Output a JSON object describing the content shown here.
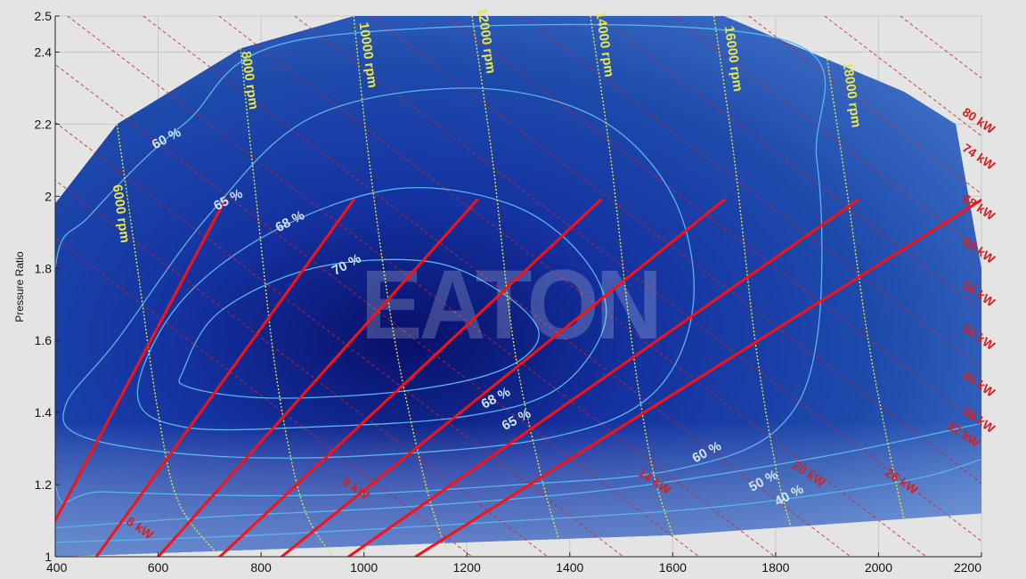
{
  "chart_data": {
    "type": "heatmap",
    "title": "",
    "xlabel": "",
    "ylabel": "Pressure Ratio",
    "xlim": [
      400,
      2200
    ],
    "ylim": [
      1.0,
      2.5
    ],
    "x_ticks": [
      "400",
      "600",
      "800",
      "1000",
      "1200",
      "1400",
      "1600",
      "1800",
      "2000",
      "2200"
    ],
    "y_ticks": [
      "1",
      "1.2",
      "1.4",
      "1.6",
      "1.8",
      "2",
      "2.2",
      "2.4",
      "2.5"
    ],
    "grid": true,
    "watermark": "EATON",
    "colors": {
      "background": "#e4e4e4",
      "map_fill": "#1e4aa8",
      "map_core": "#0a1470",
      "efficiency_contour": "#5ab4ee",
      "speed_line": "#e6e63c",
      "power_line": "#d42020",
      "operating_line": "#ff1010"
    },
    "map_boundary": [
      [
        400,
        1.98
      ],
      [
        520,
        2.2
      ],
      [
        760,
        2.41
      ],
      [
        980,
        2.5
      ],
      [
        1700,
        2.5
      ],
      [
        2050,
        2.29
      ],
      [
        2150,
        2.2
      ],
      [
        2200,
        1.8
      ],
      [
        2200,
        1.12
      ],
      [
        1600,
        1.06
      ],
      [
        1000,
        1.03
      ],
      [
        400,
        1.0
      ]
    ],
    "speed_lines": [
      {
        "label": "6000 rpm",
        "points": [
          [
            520,
            2.2
          ],
          [
            560,
            1.8
          ],
          [
            600,
            1.4
          ],
          [
            640,
            1.15
          ],
          [
            720,
            1.0
          ]
        ],
        "label_at": [
          520,
          1.95
        ]
      },
      {
        "label": "8000 rpm",
        "points": [
          [
            760,
            2.41
          ],
          [
            790,
            2.0
          ],
          [
            830,
            1.5
          ],
          [
            880,
            1.15
          ],
          [
            940,
            1.0
          ]
        ],
        "label_at": [
          770,
          2.32
        ]
      },
      {
        "label": "10000 rpm",
        "points": [
          [
            980,
            2.5
          ],
          [
            1010,
            2.1
          ],
          [
            1060,
            1.6
          ],
          [
            1120,
            1.2
          ],
          [
            1160,
            1.02
          ]
        ],
        "label_at": [
          1000,
          2.39
        ]
      },
      {
        "label": "12000 rpm",
        "points": [
          [
            1210,
            2.5
          ],
          [
            1250,
            2.1
          ],
          [
            1290,
            1.6
          ],
          [
            1340,
            1.25
          ],
          [
            1380,
            1.04
          ]
        ],
        "label_at": [
          1230,
          2.43
        ]
      },
      {
        "label": "14000 rpm",
        "points": [
          [
            1440,
            2.5
          ],
          [
            1480,
            2.1
          ],
          [
            1520,
            1.6
          ],
          [
            1560,
            1.25
          ],
          [
            1600,
            1.06
          ]
        ],
        "label_at": [
          1460,
          2.42
        ]
      },
      {
        "label": "16000 rpm",
        "points": [
          [
            1680,
            2.5
          ],
          [
            1720,
            2.1
          ],
          [
            1760,
            1.6
          ],
          [
            1800,
            1.25
          ],
          [
            1830,
            1.08
          ]
        ],
        "label_at": [
          1710,
          2.38
        ]
      },
      {
        "label": "18000 rpm",
        "points": [
          [
            1900,
            2.38
          ],
          [
            1940,
            2.0
          ],
          [
            1980,
            1.6
          ],
          [
            2020,
            1.3
          ],
          [
            2050,
            1.1
          ]
        ],
        "label_at": [
          1940,
          2.28
        ]
      }
    ],
    "efficiency_contours": [
      {
        "label": "70 %",
        "label_at": [
          970,
          1.8
        ],
        "points": [
          [
            650,
            1.52
          ],
          [
            720,
            1.68
          ],
          [
            900,
            1.8
          ],
          [
            1120,
            1.82
          ],
          [
            1260,
            1.74
          ],
          [
            1340,
            1.62
          ],
          [
            1270,
            1.52
          ],
          [
            1080,
            1.46
          ],
          [
            820,
            1.44
          ],
          [
            660,
            1.47
          ]
        ]
      },
      {
        "label": "68 %",
        "label_at": [
          860,
          1.92
        ],
        "label2": "68 %",
        "label2_at": [
          1260,
          1.43
        ],
        "points": [
          [
            560,
            1.45
          ],
          [
            640,
            1.7
          ],
          [
            820,
            1.9
          ],
          [
            1060,
            2.02
          ],
          [
            1280,
            1.98
          ],
          [
            1420,
            1.84
          ],
          [
            1470,
            1.66
          ],
          [
            1380,
            1.47
          ],
          [
            1200,
            1.39
          ],
          [
            900,
            1.36
          ],
          [
            650,
            1.36
          ]
        ]
      },
      {
        "label": "65 %",
        "label_at": [
          740,
          1.98
        ],
        "label2": "65 %",
        "label2_at": [
          1300,
          1.37
        ],
        "points": [
          [
            420,
            1.42
          ],
          [
            520,
            1.6
          ],
          [
            700,
            1.95
          ],
          [
            900,
            2.22
          ],
          [
            1200,
            2.3
          ],
          [
            1450,
            2.22
          ],
          [
            1600,
            2.0
          ],
          [
            1640,
            1.7
          ],
          [
            1560,
            1.45
          ],
          [
            1360,
            1.33
          ],
          [
            1000,
            1.28
          ],
          [
            700,
            1.28
          ],
          [
            460,
            1.33
          ]
        ]
      },
      {
        "label": "60 %",
        "label_at": [
          620,
          2.15
        ],
        "label2": "60 %",
        "label2_at": [
          1670,
          1.28
        ],
        "points": [
          [
            400,
            1.8
          ],
          [
            470,
            1.95
          ],
          [
            650,
            2.2
          ],
          [
            900,
            2.44
          ],
          [
            1800,
            2.44
          ],
          [
            1880,
            2.1
          ],
          [
            1880,
            1.6
          ],
          [
            1800,
            1.35
          ],
          [
            1600,
            1.24
          ],
          [
            1300,
            1.2
          ],
          [
            900,
            1.17
          ],
          [
            500,
            1.18
          ],
          [
            400,
            1.2
          ]
        ]
      },
      {
        "label": "50 %",
        "label_at": [
          1780,
          1.2
        ],
        "points": [
          [
            400,
            1.08
          ],
          [
            700,
            1.11
          ],
          [
            1100,
            1.14
          ],
          [
            1500,
            1.19
          ],
          [
            1900,
            1.28
          ],
          [
            2200,
            1.37
          ]
        ]
      },
      {
        "label": "40 %",
        "label_at": [
          1830,
          1.16
        ],
        "points": [
          [
            400,
            1.04
          ],
          [
            800,
            1.06
          ],
          [
            1300,
            1.1
          ],
          [
            1700,
            1.14
          ],
          [
            2050,
            1.21
          ],
          [
            2200,
            1.27
          ]
        ]
      }
    ],
    "power_lines": [
      {
        "label": "8 kW",
        "label_at": [
          560,
          1.07
        ]
      },
      {
        "label": "8 kW",
        "label_at": [
          980,
          1.18
        ]
      },
      {
        "label": "14 kW",
        "label_at": [
          1560,
          1.2
        ]
      },
      {
        "label": "20 kW",
        "label_at": [
          1860,
          1.22
        ]
      },
      {
        "label": "26 kW",
        "label_at": [
          2040,
          1.2
        ]
      },
      {
        "label": "32 kW",
        "label_at": [
          2160,
          1.33
        ]
      },
      {
        "label": "38 kW",
        "label_at": [
          2220,
          1.37
        ]
      },
      {
        "label": "44 kW",
        "label_at": [
          2230,
          1.47
        ]
      },
      {
        "label": "50 kW",
        "label_at": [
          2230,
          1.6
        ]
      },
      {
        "label": "56 kW",
        "label_at": [
          2240,
          1.72
        ]
      },
      {
        "label": "62 kW",
        "label_at": [
          2230,
          1.84
        ]
      },
      {
        "label": "68 kW",
        "label_at": [
          2240,
          1.96
        ]
      },
      {
        "label": "74 kW",
        "label_at": [
          2250,
          2.1
        ]
      },
      {
        "label": "80 kW",
        "label_at": [
          2260,
          2.2
        ]
      }
    ],
    "operating_lines": [
      {
        "points": [
          [
            400,
            1.1
          ],
          [
            730,
            1.99
          ]
        ]
      },
      {
        "points": [
          [
            480,
            1.0
          ],
          [
            980,
            1.99
          ]
        ]
      },
      {
        "points": [
          [
            600,
            1.0
          ],
          [
            1220,
            1.99
          ]
        ]
      },
      {
        "points": [
          [
            720,
            1.0
          ],
          [
            1460,
            1.99
          ]
        ]
      },
      {
        "points": [
          [
            840,
            1.0
          ],
          [
            1700,
            1.99
          ]
        ]
      },
      {
        "points": [
          [
            970,
            1.0
          ],
          [
            1960,
            1.99
          ]
        ]
      },
      {
        "points": [
          [
            1100,
            1.0
          ],
          [
            2200,
            1.99
          ]
        ]
      }
    ]
  }
}
